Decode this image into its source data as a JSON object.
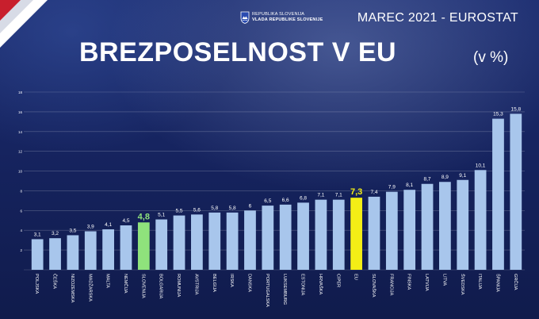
{
  "header": {
    "org_line1": "REPUBLIKA SLOVENIJA",
    "org_line2": "VLADA REPUBLIKE SLOVENIJE",
    "date_source": "MAREC 2021 - EUROSTAT",
    "title": "BREZPOSELNOST V EU",
    "unit": "(v %)"
  },
  "colors": {
    "bar": "#a8c6ec",
    "highlight_slovenia": "#8fe27c",
    "highlight_eu": "#f3ee16",
    "label": "#ffffff"
  },
  "chart_data": {
    "type": "bar",
    "title": "BREZPOSELNOST V EU",
    "ylabel": "",
    "xlabel": "",
    "ylim": [
      0,
      18
    ],
    "yticks": [
      0,
      2,
      4,
      6,
      8,
      10,
      12,
      14,
      16,
      18
    ],
    "grid": true,
    "categories": [
      "POLJSKA",
      "ČEŠKA",
      "NIZOZEMSKA",
      "MADŽARSKA",
      "MALTA",
      "NEMČIJA",
      "SLOVENIJA",
      "BOLGARIJA",
      "ROMUNIJA",
      "AVSTRIJA",
      "BELGIJA",
      "IRSKA",
      "DANSKA",
      "PORTUGALSKA",
      "LUKSEMBURG",
      "ESTONIJA",
      "HRVAŠKA",
      "CIPER",
      "EU",
      "SLOVAŠKA",
      "FRANCIJA",
      "FINSKA",
      "LATVIJA",
      "LITVA",
      "ŠVEDSKA",
      "ITALIJA",
      "ŠPANIJA",
      "GRČIJA"
    ],
    "values": [
      3.1,
      3.2,
      3.5,
      3.9,
      4.1,
      4.5,
      4.8,
      5.1,
      5.5,
      5.6,
      5.8,
      5.8,
      6,
      6.5,
      6.6,
      6.8,
      7.1,
      7.1,
      7.3,
      7.4,
      7.9,
      8.1,
      8.7,
      8.9,
      9.1,
      10.1,
      15.3,
      15.8
    ],
    "value_labels": [
      "3,1",
      "3,2",
      "3,5",
      "3,9",
      "4,1",
      "4,5",
      "4,8",
      "5,1",
      "5,5",
      "5,6",
      "5,8",
      "5,8",
      "6",
      "6,5",
      "6,6",
      "6,8",
      "7,1",
      "7,1",
      "7,3",
      "7,4",
      "7,9",
      "8,1",
      "8,7",
      "8,9",
      "9,1",
      "10,1",
      "15,3",
      "15,8"
    ],
    "highlights": {
      "SLOVENIJA": "highlight_slovenia",
      "EU": "highlight_eu"
    }
  }
}
